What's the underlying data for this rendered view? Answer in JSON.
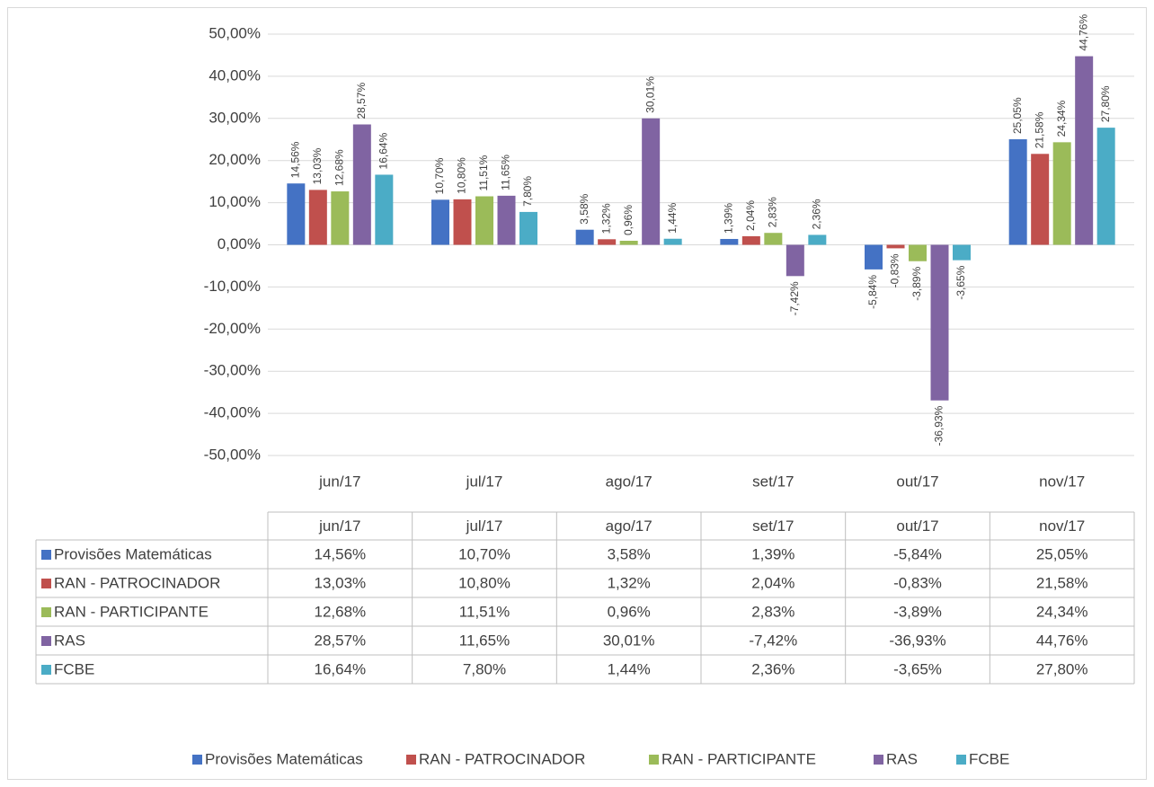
{
  "chart_data": {
    "type": "bar",
    "categories": [
      "jun/17",
      "jul/17",
      "ago/17",
      "set/17",
      "out/17",
      "nov/17"
    ],
    "series": [
      {
        "name": "Provisões Matemáticas",
        "color": "#4472c4",
        "values": [
          14.56,
          10.7,
          3.58,
          1.39,
          -5.84,
          25.05
        ],
        "value_labels": [
          "14,56%",
          "10,70%",
          "3,58%",
          "1,39%",
          "-5,84%",
          "25,05%"
        ]
      },
      {
        "name": "RAN - PATROCINADOR",
        "color": "#c0504d",
        "values": [
          13.03,
          10.8,
          1.32,
          2.04,
          -0.83,
          21.58
        ],
        "value_labels": [
          "13,03%",
          "10,80%",
          "1,32%",
          "2,04%",
          "-0,83%",
          "21,58%"
        ]
      },
      {
        "name": "RAN - PARTICIPANTE",
        "color": "#9bbb59",
        "values": [
          12.68,
          11.51,
          0.96,
          2.83,
          -3.89,
          24.34
        ],
        "value_labels": [
          "12,68%",
          "11,51%",
          "0,96%",
          "2,83%",
          "-3,89%",
          "24,34%"
        ]
      },
      {
        "name": "RAS",
        "color": "#8064a2",
        "values": [
          28.57,
          11.65,
          30.01,
          -7.42,
          -36.93,
          44.76
        ],
        "value_labels": [
          "28,57%",
          "11,65%",
          "30,01%",
          "-7,42%",
          "-36,93%",
          "44,76%"
        ]
      },
      {
        "name": "FCBE",
        "color": "#4bacc6",
        "values": [
          16.64,
          7.8,
          1.44,
          2.36,
          -3.65,
          27.8
        ],
        "value_labels": [
          "16,64%",
          "7,80%",
          "1,44%",
          "2,36%",
          "-3,65%",
          "27,80%"
        ]
      }
    ],
    "ylim": [
      -50,
      50
    ],
    "yticks": [
      {
        "value": -50,
        "label": "-50,00%"
      },
      {
        "value": -40,
        "label": "-40,00%"
      },
      {
        "value": -30,
        "label": "-30,00%"
      },
      {
        "value": -20,
        "label": "-20,00%"
      },
      {
        "value": -10,
        "label": "-10,00%"
      },
      {
        "value": 0,
        "label": "0,00%"
      },
      {
        "value": 10,
        "label": "10,00%"
      },
      {
        "value": 20,
        "label": "20,00%"
      },
      {
        "value": 30,
        "label": "30,00%"
      },
      {
        "value": 40,
        "label": "40,00%"
      },
      {
        "value": 50,
        "label": "50,00%"
      }
    ],
    "grid": true,
    "legend": "bottom"
  }
}
